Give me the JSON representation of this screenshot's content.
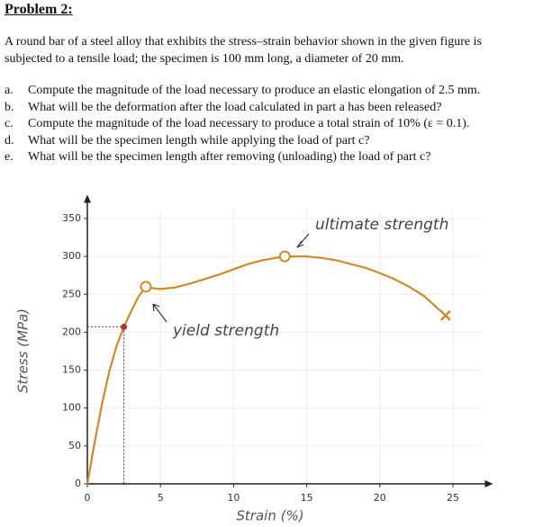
{
  "header": {
    "title": "Problem 2:"
  },
  "paragraph": [
    "A round bar of a steel alloy that exhibits the stress–strain behavior shown in the given figure is",
    "subjected to a tensile load; the specimen is 100 mm long, a diameter of 20 mm."
  ],
  "questions": [
    {
      "label": "a.",
      "text": "Compute the magnitude of the load necessary to produce an elastic elongation of 2.5 mm."
    },
    {
      "label": "b.",
      "text": "What will be the deformation after the load calculated in part a has been released?"
    },
    {
      "label": "c.",
      "text": "Compute the magnitude of the load necessary to produce a total strain of 10% (ε = 0.1)."
    },
    {
      "label": "d.",
      "text": "What will be the specimen length while applying the load of part c?"
    },
    {
      "label": "e.",
      "text": "What will be the specimen length after removing (unloading) the load of part c?"
    }
  ],
  "chart_data": {
    "type": "line",
    "x_label": "Strain (%)",
    "y_label": "Stress (MPa)",
    "annotations": [
      "ultimate strength",
      "yield strength"
    ],
    "series": [
      {
        "color": "#d08a28",
        "x": [
          0,
          0.5,
          1,
          1.5,
          2,
          2.5,
          3,
          3.5,
          4,
          4.5,
          5,
          6,
          7,
          8,
          9,
          10,
          11,
          12,
          13.5,
          15,
          16,
          17,
          18,
          19,
          20,
          21,
          22,
          23,
          24.5
        ],
        "values": [
          0,
          55,
          105,
          148,
          182,
          207,
          228,
          247,
          260,
          258,
          257,
          259,
          264,
          270,
          276,
          283,
          290,
          295,
          300,
          300,
          298,
          295,
          290,
          285,
          278,
          270,
          260,
          248,
          222
        ]
      }
    ],
    "markers": [
      {
        "x": 2.5,
        "y": 207,
        "shape": "dot",
        "color": "#b5332b"
      },
      {
        "x": 4,
        "y": 260,
        "shape": "circle",
        "color": "#d08a28"
      },
      {
        "x": 13.5,
        "y": 300,
        "shape": "circle",
        "color": "#d08a28"
      },
      {
        "x": 24.5,
        "y": 222,
        "shape": "cross",
        "color": "#d08a28"
      }
    ],
    "xlim": [
      0,
      27
    ],
    "ylim": [
      0,
      360
    ],
    "xticks": [
      0,
      5,
      10,
      15,
      20,
      25
    ],
    "yticks": [
      0,
      50,
      100,
      150,
      200,
      250,
      300,
      350
    ],
    "grid": true
  }
}
